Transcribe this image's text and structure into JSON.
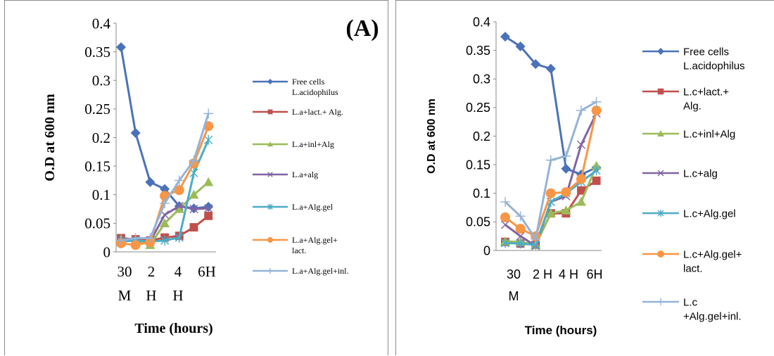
{
  "chart_data": [
    {
      "type": "line",
      "panel_label": "(A)",
      "ylabel": "O.D at 600 nm",
      "xlabel": "Time (hours)",
      "ylim": [
        0,
        0.4
      ],
      "yticks": [
        "0",
        "0.05",
        "0.1",
        "0.15",
        "0.2",
        "0.25",
        "0.3",
        "0.35",
        "0.4"
      ],
      "x_tick_labels": [
        {
          "line1": "30",
          "line2": "M"
        },
        {
          "line1": "2",
          "line2": "H"
        },
        {
          "line1": "4",
          "line2": "H"
        },
        {
          "line1": "6H",
          "line2": ""
        }
      ],
      "grid": false,
      "legend": "right",
      "series": [
        {
          "name": "Free cells L.acidophilus",
          "name_lines": [
            "Free cells",
            "L.acidophilus"
          ],
          "color": "#4A72B8",
          "marker": "diamond",
          "values": [
            0.358,
            0.208,
            0.122,
            0.11,
            0.08,
            0.076,
            0.079
          ]
        },
        {
          "name": "L.a+lact.+ Alg.",
          "name_lines": [
            "L.a+lact.+ Alg."
          ],
          "color": "#C0504D",
          "marker": "square",
          "values": [
            0.024,
            0.022,
            0.02,
            0.025,
            0.028,
            0.043,
            0.063
          ]
        },
        {
          "name": "L.a+inl+Alg",
          "name_lines": [
            "L.a+inl+Alg"
          ],
          "color": "#9BBB59",
          "marker": "triangle",
          "values": [
            0.022,
            0.02,
            0.012,
            0.05,
            0.075,
            0.1,
            0.122
          ]
        },
        {
          "name": "L.a+alg",
          "name_lines": [
            "L.a+alg"
          ],
          "color": "#8064A2",
          "marker": "x",
          "values": [
            0.022,
            0.02,
            0.018,
            0.065,
            0.08,
            0.075,
            0.076
          ]
        },
        {
          "name": "L.a+Alg.gel",
          "name_lines": [
            "L.a+Alg.gel"
          ],
          "color": "#4BACC6",
          "marker": "star",
          "values": [
            0.018,
            0.02,
            0.018,
            0.02,
            0.025,
            0.138,
            0.196
          ]
        },
        {
          "name": "L.a+Alg.gel+ lact.",
          "name_lines": [
            "L.a+Alg.gel+",
            "lact."
          ],
          "color": "#F79646",
          "marker": "circle",
          "values": [
            0.015,
            0.012,
            0.017,
            0.098,
            0.108,
            0.155,
            0.22
          ]
        },
        {
          "name": "L.a+Alg.gel+inl.",
          "name_lines": [
            "L.a+Alg.gel+inl."
          ],
          "color": "#95B3D7",
          "marker": "plus",
          "values": [
            0.02,
            0.024,
            0.024,
            0.085,
            0.125,
            0.16,
            0.242
          ]
        }
      ]
    },
    {
      "type": "line",
      "panel_label": "",
      "ylabel": "O.D at 600 nm",
      "xlabel": "Time (hours)",
      "ylim": [
        0,
        0.4
      ],
      "yticks": [
        "0",
        "0.05",
        "0.1",
        "0.15",
        "0.2",
        "0.25",
        "0.3",
        "0.35",
        "0.4"
      ],
      "x_tick_labels": [
        {
          "line1": "30",
          "line2": "M"
        },
        {
          "line1": "2 H",
          "line2": ""
        },
        {
          "line1": "4 H",
          "line2": ""
        },
        {
          "line1": "6H",
          "line2": ""
        }
      ],
      "grid": false,
      "legend": "right",
      "series": [
        {
          "name": "Free cells L.acidophilus",
          "name_lines": [
            "Free cells",
            "L.acidophilus"
          ],
          "color": "#4A72B8",
          "marker": "diamond",
          "values": [
            0.374,
            0.357,
            0.326,
            0.318,
            0.143,
            0.133,
            0.145
          ]
        },
        {
          "name": "L.c+lact.+ Alg.",
          "name_lines": [
            "L.c+lact.+",
            "Alg."
          ],
          "color": "#C0504D",
          "marker": "square",
          "values": [
            0.015,
            0.012,
            0.01,
            0.065,
            0.065,
            0.105,
            0.122
          ]
        },
        {
          "name": "L.c+inl+Alg",
          "name_lines": [
            "L.c+inl+Alg"
          ],
          "color": "#9BBB59",
          "marker": "triangle",
          "values": [
            0.016,
            0.015,
            0.01,
            0.065,
            0.07,
            0.085,
            0.148
          ]
        },
        {
          "name": "L.c+alg",
          "name_lines": [
            "L.c+alg"
          ],
          "color": "#8064A2",
          "marker": "x",
          "values": [
            0.045,
            0.025,
            0.008,
            0.085,
            0.095,
            0.185,
            0.24
          ]
        },
        {
          "name": "L.c+Alg.gel",
          "name_lines": [
            "L.c+Alg.gel"
          ],
          "color": "#4BACC6",
          "marker": "star",
          "values": [
            0.013,
            0.012,
            0.01,
            0.085,
            0.1,
            0.12,
            0.14
          ]
        },
        {
          "name": "L.c+Alg.gel+ lact.",
          "name_lines": [
            "L.c+Alg.gel+",
            "lact."
          ],
          "color": "#F79646",
          "marker": "circle",
          "values": [
            0.058,
            0.038,
            0.025,
            0.1,
            0.102,
            0.125,
            0.245
          ]
        },
        {
          "name": "L.c +Alg.gel+inl.",
          "name_lines": [
            "L.c",
            "+Alg.gel+inl."
          ],
          "color": "#95B3D7",
          "marker": "plus",
          "values": [
            0.085,
            0.06,
            0.02,
            0.158,
            0.165,
            0.245,
            0.26
          ]
        }
      ]
    }
  ]
}
